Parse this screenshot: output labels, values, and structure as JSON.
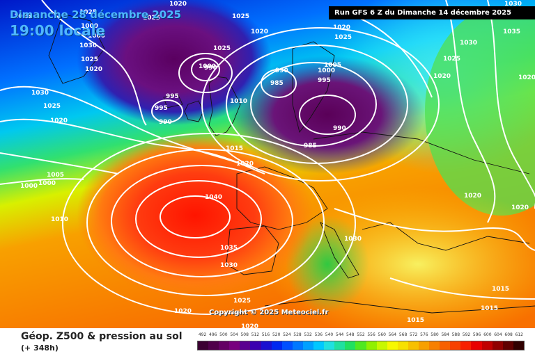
{
  "header": {
    "date_line": "Dimanche 28 décembre 2025",
    "time_line": "19:00 locale",
    "run_info": "Run GFS 6 Z du Dimanche 14 décembre 2025"
  },
  "copyright": "Copyright © 2025 Meteociel.fr",
  "legend": {
    "title": "Géop. Z500 & pression au sol",
    "subtitle": "(+ 348h)",
    "scale_labels": [
      "492",
      "496",
      "500",
      "504",
      "508",
      "512",
      "516",
      "520",
      "524",
      "528",
      "532",
      "536",
      "540",
      "544",
      "548",
      "552",
      "556",
      "560",
      "564",
      "568",
      "572",
      "576",
      "580",
      "584",
      "588",
      "592",
      "596",
      "600",
      "604",
      "608",
      "612"
    ],
    "scale_colors": [
      "#3c0032",
      "#50004a",
      "#640064",
      "#78007e",
      "#5a0090",
      "#3a00b0",
      "#1a10d0",
      "#0028f0",
      "#0050ff",
      "#0078ff",
      "#00a0ff",
      "#00c8ff",
      "#20e0e0",
      "#20e0a0",
      "#20e060",
      "#50e820",
      "#90f000",
      "#c8f800",
      "#f8f800",
      "#f8e000",
      "#f8c000",
      "#f8a000",
      "#f88000",
      "#f86000",
      "#f84000",
      "#f82000",
      "#e80000",
      "#c00000",
      "#900000",
      "#600000",
      "#300000"
    ]
  },
  "isobar_labels": [
    "1020",
    "1025",
    "1020",
    "1025",
    "1020",
    "1025",
    "1020",
    "1030",
    "1030",
    "1025",
    "1020",
    "1010",
    "1005",
    "1000",
    "1000",
    "1000",
    "995",
    "990",
    "1030",
    "1025",
    "1020",
    "995",
    "990",
    "985",
    "990",
    "1000",
    "1005",
    "995",
    "985",
    "990",
    "1010",
    "1015",
    "1020",
    "1040",
    "1035",
    "1030",
    "1030",
    "1025",
    "1020",
    "1015",
    "1015",
    "1015",
    "1020",
    "1020",
    "1020",
    "1035",
    "1030",
    "1025",
    "1020",
    "1025",
    "1025",
    "1000",
    "1000",
    "1025"
  ],
  "icons": {
    "isobar": "isobar-line",
    "coastline": "coastline-line"
  }
}
